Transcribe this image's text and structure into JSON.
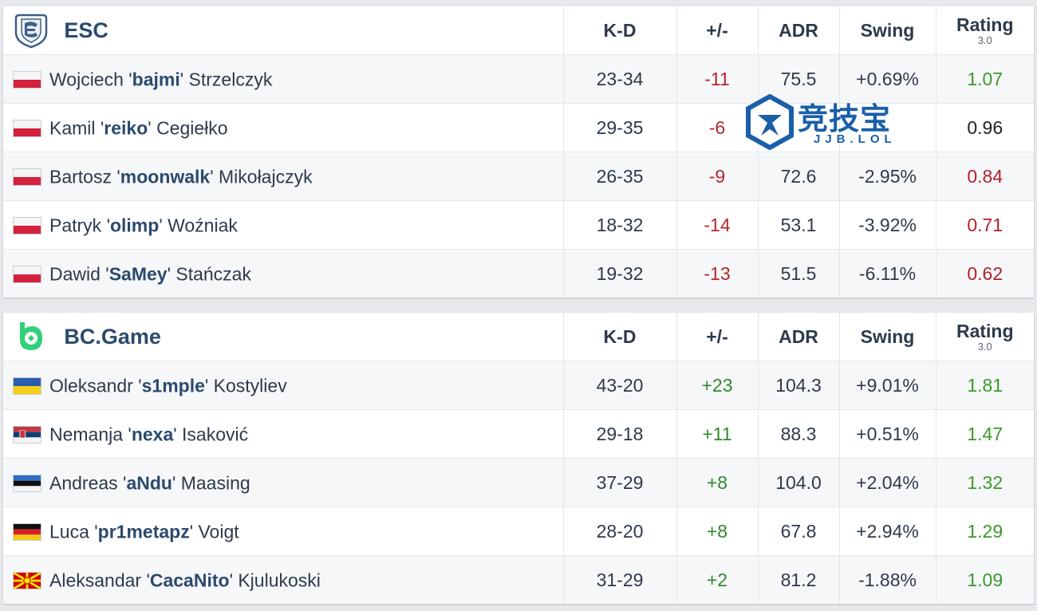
{
  "columns": {
    "kd": "K-D",
    "pm": "+/-",
    "adr": "ADR",
    "swing": "Swing",
    "rating": "Rating",
    "rating_version": "3.0"
  },
  "teams": [
    {
      "name": "ESC",
      "logo_icon": "esc-logo-icon",
      "players": [
        {
          "first": "Wojciech '",
          "nick": "bajmi",
          "last": "' Strzelczyk",
          "flag": "poland-flag-icon",
          "kd": "23-34",
          "pm": "-11",
          "adr": "75.5",
          "swing": "+0.69%",
          "rating": "1.07"
        },
        {
          "first": "Kamil '",
          "nick": "reiko",
          "last": "' Cegiełko",
          "flag": "poland-flag-icon",
          "kd": "29-35",
          "pm": "-6",
          "adr": "",
          "swing": "",
          "rating": "0.96"
        },
        {
          "first": "Bartosz '",
          "nick": "moonwalk",
          "last": "' Mikołajczyk",
          "flag": "poland-flag-icon",
          "kd": "26-35",
          "pm": "-9",
          "adr": "72.6",
          "swing": "-2.95%",
          "rating": "0.84"
        },
        {
          "first": "Patryk '",
          "nick": "olimp",
          "last": "' Woźniak",
          "flag": "poland-flag-icon",
          "kd": "18-32",
          "pm": "-14",
          "adr": "53.1",
          "swing": "-3.92%",
          "rating": "0.71"
        },
        {
          "first": "Dawid '",
          "nick": "SaMey",
          "last": "' Stańczak",
          "flag": "poland-flag-icon",
          "kd": "19-32",
          "pm": "-13",
          "adr": "51.5",
          "swing": "-6.11%",
          "rating": "0.62"
        }
      ]
    },
    {
      "name": "BC.Game",
      "logo_icon": "bcgame-logo-icon",
      "players": [
        {
          "first": "Oleksandr '",
          "nick": "s1mple",
          "last": "' Kostyliev",
          "flag": "ukraine-flag-icon",
          "kd": "43-20",
          "pm": "+23",
          "adr": "104.3",
          "swing": "+9.01%",
          "rating": "1.81"
        },
        {
          "first": "Nemanja '",
          "nick": "nexa",
          "last": "' Isaković",
          "flag": "serbia-flag-icon",
          "kd": "29-18",
          "pm": "+11",
          "adr": "88.3",
          "swing": "+0.51%",
          "rating": "1.47"
        },
        {
          "first": "Andreas '",
          "nick": "aNdu",
          "last": "' Maasing",
          "flag": "estonia-flag-icon",
          "kd": "37-29",
          "pm": "+8",
          "adr": "104.0",
          "swing": "+2.04%",
          "rating": "1.32"
        },
        {
          "first": "Luca '",
          "nick": "pr1metapz",
          "last": "' Voigt",
          "flag": "germany-flag-icon",
          "kd": "28-20",
          "pm": "+8",
          "adr": "67.8",
          "swing": "+2.94%",
          "rating": "1.29"
        },
        {
          "first": "Aleksandar '",
          "nick": "CacaNito",
          "last": "' Kjulukoski",
          "flag": "north-macedonia-flag-icon",
          "kd": "31-29",
          "pm": "+2",
          "adr": "81.2",
          "swing": "-1.88%",
          "rating": "1.09"
        }
      ]
    }
  ],
  "watermark": {
    "text": "竞技宝",
    "sub": "JJB.LOL"
  },
  "colors": {
    "negative": "#b3262a",
    "positive": "#2f8a2a",
    "rating_good": "#3a9a2a",
    "rating_bad": "#b3202a",
    "team_name": "#2b4a6e"
  }
}
